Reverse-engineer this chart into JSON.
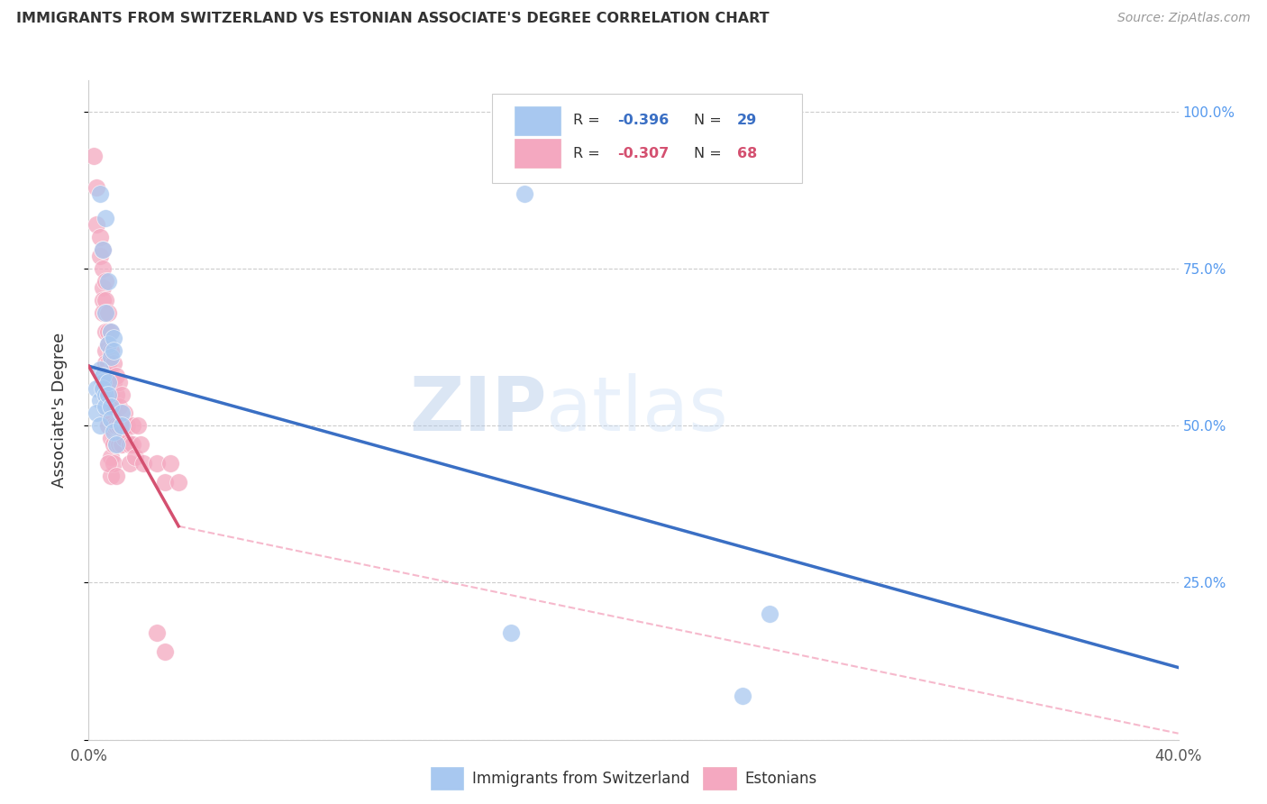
{
  "title": "IMMIGRANTS FROM SWITZERLAND VS ESTONIAN ASSOCIATE'S DEGREE CORRELATION CHART",
  "source": "Source: ZipAtlas.com",
  "ylabel": "Associate's Degree",
  "right_axis_labels": [
    "100.0%",
    "75.0%",
    "50.0%",
    "25.0%"
  ],
  "legend_blue_label": "Immigrants from Switzerland",
  "legend_pink_label": "Estonians",
  "watermark_zip": "ZIP",
  "watermark_atlas": "atlas",
  "blue_color": "#a8c8f0",
  "pink_color": "#f4a8c0",
  "blue_line_color": "#3a6fc4",
  "pink_line_color": "#d45070",
  "blue_scatter": [
    [
      0.004,
      0.87
    ],
    [
      0.006,
      0.83
    ],
    [
      0.005,
      0.78
    ],
    [
      0.007,
      0.73
    ],
    [
      0.006,
      0.68
    ],
    [
      0.008,
      0.65
    ],
    [
      0.007,
      0.63
    ],
    [
      0.008,
      0.61
    ],
    [
      0.009,
      0.64
    ],
    [
      0.009,
      0.62
    ],
    [
      0.004,
      0.59
    ],
    [
      0.005,
      0.57
    ],
    [
      0.003,
      0.56
    ],
    [
      0.004,
      0.54
    ],
    [
      0.003,
      0.52
    ],
    [
      0.004,
      0.5
    ],
    [
      0.005,
      0.58
    ],
    [
      0.005,
      0.56
    ],
    [
      0.006,
      0.55
    ],
    [
      0.006,
      0.53
    ],
    [
      0.007,
      0.57
    ],
    [
      0.007,
      0.55
    ],
    [
      0.008,
      0.53
    ],
    [
      0.008,
      0.51
    ],
    [
      0.009,
      0.49
    ],
    [
      0.01,
      0.47
    ],
    [
      0.012,
      0.52
    ],
    [
      0.012,
      0.5
    ],
    [
      0.16,
      0.87
    ],
    [
      0.25,
      0.2
    ],
    [
      0.155,
      0.17
    ],
    [
      0.24,
      0.07
    ]
  ],
  "pink_scatter": [
    [
      0.002,
      0.93
    ],
    [
      0.003,
      0.88
    ],
    [
      0.003,
      0.82
    ],
    [
      0.004,
      0.8
    ],
    [
      0.004,
      0.77
    ],
    [
      0.005,
      0.78
    ],
    [
      0.005,
      0.75
    ],
    [
      0.005,
      0.72
    ],
    [
      0.005,
      0.7
    ],
    [
      0.005,
      0.68
    ],
    [
      0.006,
      0.73
    ],
    [
      0.006,
      0.7
    ],
    [
      0.006,
      0.68
    ],
    [
      0.006,
      0.65
    ],
    [
      0.006,
      0.62
    ],
    [
      0.006,
      0.6
    ],
    [
      0.006,
      0.57
    ],
    [
      0.006,
      0.55
    ],
    [
      0.007,
      0.68
    ],
    [
      0.007,
      0.65
    ],
    [
      0.007,
      0.63
    ],
    [
      0.007,
      0.6
    ],
    [
      0.007,
      0.57
    ],
    [
      0.007,
      0.55
    ],
    [
      0.007,
      0.52
    ],
    [
      0.007,
      0.5
    ],
    [
      0.008,
      0.65
    ],
    [
      0.008,
      0.62
    ],
    [
      0.008,
      0.58
    ],
    [
      0.008,
      0.55
    ],
    [
      0.008,
      0.52
    ],
    [
      0.008,
      0.48
    ],
    [
      0.008,
      0.45
    ],
    [
      0.008,
      0.42
    ],
    [
      0.009,
      0.6
    ],
    [
      0.009,
      0.57
    ],
    [
      0.009,
      0.53
    ],
    [
      0.009,
      0.5
    ],
    [
      0.009,
      0.47
    ],
    [
      0.009,
      0.44
    ],
    [
      0.01,
      0.58
    ],
    [
      0.01,
      0.55
    ],
    [
      0.01,
      0.5
    ],
    [
      0.01,
      0.47
    ],
    [
      0.011,
      0.57
    ],
    [
      0.011,
      0.53
    ],
    [
      0.011,
      0.5
    ],
    [
      0.011,
      0.47
    ],
    [
      0.012,
      0.55
    ],
    [
      0.012,
      0.5
    ],
    [
      0.012,
      0.47
    ],
    [
      0.013,
      0.52
    ],
    [
      0.013,
      0.48
    ],
    [
      0.014,
      0.5
    ],
    [
      0.015,
      0.47
    ],
    [
      0.015,
      0.44
    ],
    [
      0.016,
      0.5
    ],
    [
      0.016,
      0.47
    ],
    [
      0.017,
      0.45
    ],
    [
      0.018,
      0.5
    ],
    [
      0.019,
      0.47
    ],
    [
      0.02,
      0.44
    ],
    [
      0.025,
      0.44
    ],
    [
      0.028,
      0.41
    ],
    [
      0.03,
      0.44
    ],
    [
      0.033,
      0.41
    ],
    [
      0.025,
      0.17
    ],
    [
      0.028,
      0.14
    ],
    [
      0.007,
      0.44
    ],
    [
      0.01,
      0.42
    ]
  ],
  "xlim": [
    0.0,
    0.4
  ],
  "ylim": [
    0.0,
    1.05
  ],
  "blue_trend_x": [
    0.0,
    0.4
  ],
  "blue_trend_y": [
    0.595,
    0.115
  ],
  "pink_trend_x": [
    0.0,
    0.033
  ],
  "pink_trend_y": [
    0.595,
    0.34
  ],
  "dashed_trend_x": [
    0.033,
    0.4
  ],
  "dashed_trend_y": [
    0.34,
    0.01
  ]
}
